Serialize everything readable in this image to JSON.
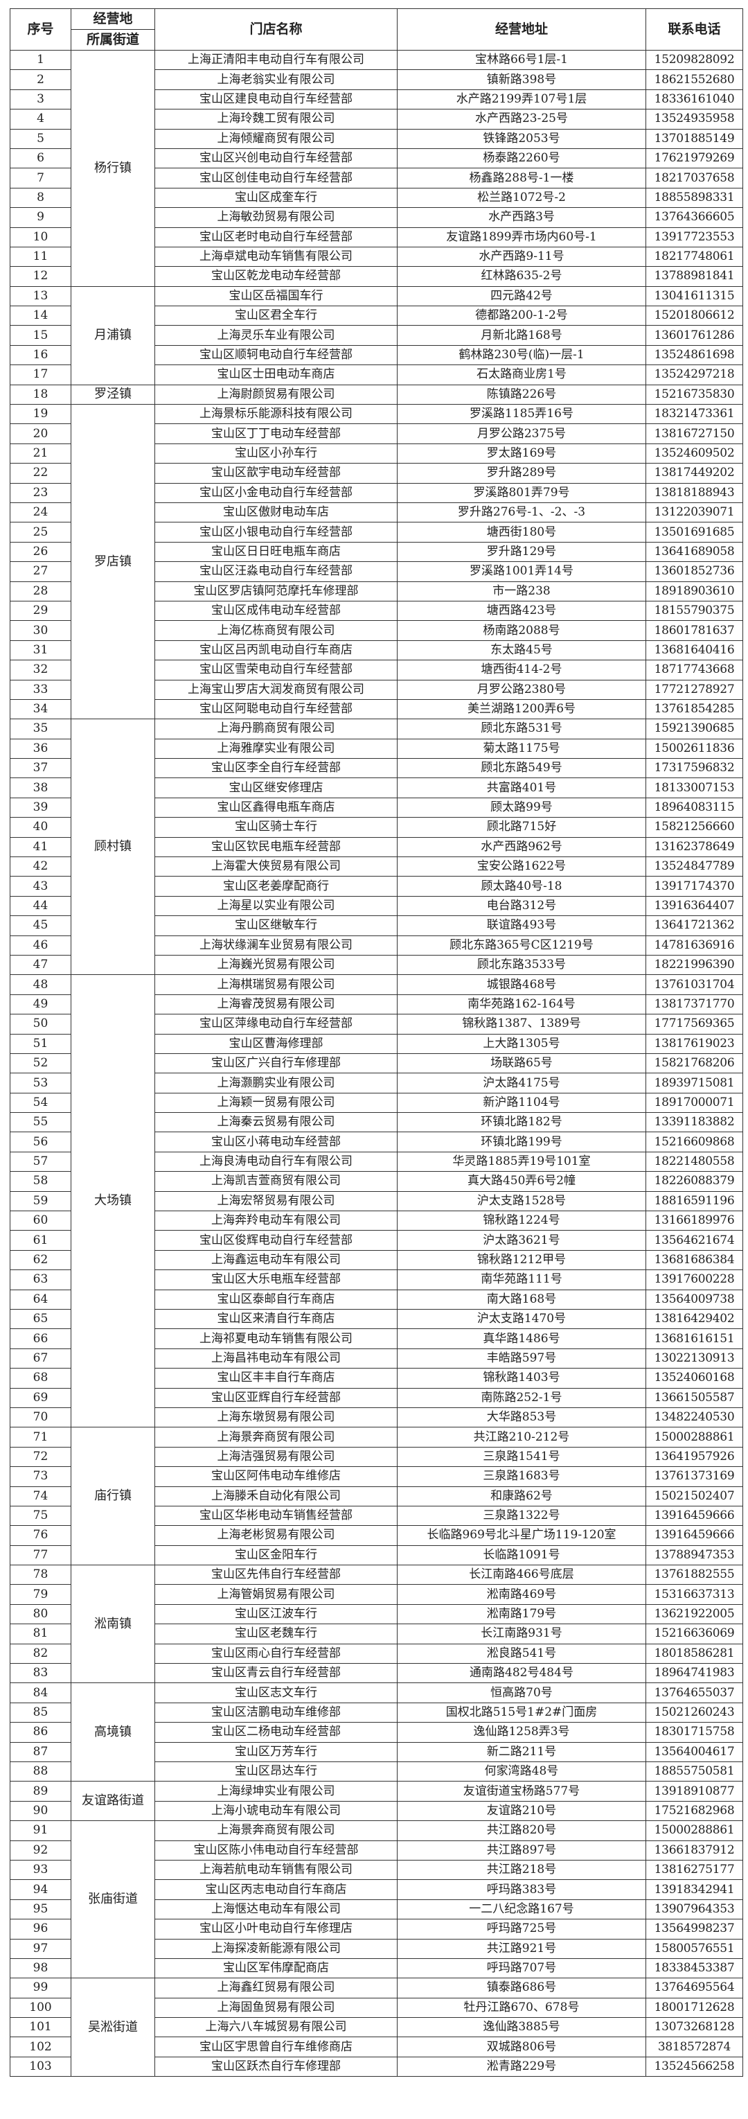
{
  "header": {
    "no": "序号",
    "street_top": "经营地",
    "street_bottom": "所属街道",
    "name": "门店名称",
    "address": "经营地址",
    "phone": "联系电话"
  },
  "groups": [
    {
      "street": "杨行镇",
      "stores": [
        [
          "1",
          "上海正清阳丰电动自行车有限公司",
          "宝林路66号1层-1",
          "15209828092"
        ],
        [
          "2",
          "上海老翁实业有限公司",
          "镇新路398号",
          "18621552680"
        ],
        [
          "3",
          "宝山区建良电动自行车经营部",
          "水产路2199弄107号1层",
          "18336161040"
        ],
        [
          "4",
          "上海玲魏工贸有限公司",
          "水产西路23-25号",
          "13524935958"
        ],
        [
          "5",
          "上海倾耀商贸有限公司",
          "铁锋路2053号",
          "13701885149"
        ],
        [
          "6",
          "宝山区兴创电动自行车经营部",
          "杨泰路2260号",
          "17621979269"
        ],
        [
          "7",
          "宝山区创佳电动自行车经营部",
          "杨鑫路288号-1一楼",
          "18217037658"
        ],
        [
          "8",
          "宝山区成奎车行",
          "松兰路1072号-2",
          "18855898331"
        ],
        [
          "9",
          "上海敏劲贸易有限公司",
          "水产西路3号",
          "13764366605"
        ],
        [
          "10",
          "宝山区老时电动自行车经营部",
          "友谊路1899弄市场内60号-1",
          "13917723553"
        ],
        [
          "11",
          "上海卓斌电动车销售有限公司",
          "水产西路9-11号",
          "18217748061"
        ],
        [
          "12",
          "宝山区乾龙电动车经营部",
          "红林路635-2号",
          "13788981841"
        ]
      ]
    },
    {
      "street": "月浦镇",
      "stores": [
        [
          "13",
          "宝山区岳福国车行",
          "四元路42号",
          "13041611315"
        ],
        [
          "14",
          "宝山区君全车行",
          "德都路200-1-2号",
          "15201806612"
        ],
        [
          "15",
          "上海灵乐车业有限公司",
          "月新北路168号",
          "13601761286"
        ],
        [
          "16",
          "宝山区顺轲电动自行车经营部",
          "鹤林路230号(临)一层-1",
          "13524861698"
        ],
        [
          "17",
          "宝山区士田电动车商店",
          "石太路商业房1号",
          "13524297218"
        ]
      ]
    },
    {
      "street": "罗泾镇",
      "stores": [
        [
          "18",
          "上海尉颜贸易有限公司",
          "陈镇路226号",
          "15216735830"
        ]
      ]
    },
    {
      "street": "罗店镇",
      "stores": [
        [
          "19",
          "上海景标乐能源科技有限公司",
          "罗溪路1185弄16号",
          "18321473361"
        ],
        [
          "20",
          "宝山区丁丁电动车经营部",
          "月罗公路2375号",
          "13816727150"
        ],
        [
          "21",
          "宝山区小孙车行",
          "罗太路169号",
          "13524609502"
        ],
        [
          "22",
          "宝山区歆宇电动车经营部",
          "罗升路289号",
          "13817449202"
        ],
        [
          "23",
          "宝山区小金电动自行车经营部",
          "罗溪路801弄79号",
          "13818188943"
        ],
        [
          "24",
          "宝山区傲财电动车店",
          "罗升路276号-1、-2、-3",
          "13122039071"
        ],
        [
          "25",
          "宝山区小银电动自行车经营部",
          "塘西街180号",
          "13501691685"
        ],
        [
          "26",
          "宝山区日日旺电瓶车商店",
          "罗升路129号",
          "13641689058"
        ],
        [
          "27",
          "宝山区汪淼电动自行车经营部",
          "罗溪路1001弄14号",
          "13601852736"
        ],
        [
          "28",
          "宝山区罗店镇阿范摩托车修理部",
          "市一路238",
          "18918903610"
        ],
        [
          "29",
          "宝山区成伟电动车经营部",
          "塘西路423号",
          "18155790375"
        ],
        [
          "30",
          "上海亿栋商贸有限公司",
          "杨南路2088号",
          "18601781637"
        ],
        [
          "31",
          "宝山区吕丙凯电动自行车商店",
          "东太路45号",
          "13681640416"
        ],
        [
          "32",
          "宝山区雪荣电动自行车经营部",
          "塘西街414-2号",
          "18717743668"
        ],
        [
          "33",
          "上海宝山罗店大润发商贸有限公司",
          "月罗公路2380号",
          "17721278927"
        ],
        [
          "34",
          "宝山区阿聪电动自行车经营部",
          "美兰湖路1200弄6号",
          "13761854285"
        ]
      ]
    },
    {
      "street": "顾村镇",
      "stores": [
        [
          "35",
          "上海丹鹏商贸有限公司",
          "顾北东路531号",
          "15921390685"
        ],
        [
          "36",
          "上海雅摩实业有限公司",
          "菊太路1175号",
          "15002611836"
        ],
        [
          "37",
          "宝山区李全自行车经营部",
          "顾北东路549号",
          "17317596832"
        ],
        [
          "38",
          "宝山区继安修理店",
          "共富路401号",
          "18133007153"
        ],
        [
          "39",
          "宝山区鑫得电瓶车商店",
          "顾太路99号",
          "18964083115"
        ],
        [
          "40",
          "宝山区骑士车行",
          "顾北路715好",
          "15821256660"
        ],
        [
          "41",
          "宝山区钦民电瓶车经营部",
          "水产西路962号",
          "13162378649"
        ],
        [
          "42",
          "上海霍大侠贸易有限公司",
          "宝安公路1622号",
          "13524847789"
        ],
        [
          "43",
          "宝山区老姜摩配商行",
          "顾太路40号-18",
          "13917174370"
        ],
        [
          "44",
          "上海星以实业有限公司",
          "电台路312号",
          "13916364407"
        ],
        [
          "45",
          "宝山区继敏车行",
          "联谊路493号",
          "13641721362"
        ],
        [
          "46",
          "上海状缘澜车业贸易有限公司",
          "顾北东路365号C区1219号",
          "14781636916"
        ],
        [
          "47",
          "上海巍光贸易有限公司",
          "顾北东路3533号",
          "18221996390"
        ]
      ]
    },
    {
      "street": "大场镇",
      "stores": [
        [
          "48",
          "上海棋瑞贸易有限公司",
          "城银路468号",
          "13761031704"
        ],
        [
          "49",
          "上海睿茂贸易有限公司",
          "南华苑路162-164号",
          "13817371770"
        ],
        [
          "50",
          "宝山区萍缘电动自行车经营部",
          "锦秋路1387、1389号",
          "17717569365"
        ],
        [
          "51",
          "宝山区曹海修理部",
          "上大路1305号",
          "13817619023"
        ],
        [
          "52",
          "宝山区广兴自行车修理部",
          "场联路65号",
          "15821768206"
        ],
        [
          "53",
          "上海灏鹏实业有限公司",
          "沪太路4175号",
          "18939715081"
        ],
        [
          "54",
          "上海颖一贸易有限公司",
          "新沪路1104号",
          "18917000071"
        ],
        [
          "55",
          "上海秦云贸易有限公司",
          "环镇北路182号",
          "13391183882"
        ],
        [
          "56",
          "宝山区小蒋电动车经营部",
          "环镇北路199号",
          "15216609868"
        ],
        [
          "57",
          "上海良涛电动自行车有限公司",
          "华灵路1885弄19号101室",
          "18221480558"
        ],
        [
          "58",
          "上海凯吉萱商贸有限公司",
          "真大路450弄6号2幢",
          "18226088379"
        ],
        [
          "59",
          "上海宏帑贸易有限公司",
          "沪太支路1528号",
          "18816591196"
        ],
        [
          "60",
          "上海奔羚电动车有限公司",
          "锦秋路1224号",
          "13166189976"
        ],
        [
          "61",
          "宝山区俊辉电动自行车经营部",
          "沪太路3621号",
          "13564621674"
        ],
        [
          "62",
          "上海鑫运电动车有限公司",
          "锦秋路1212甲号",
          "13681686384"
        ],
        [
          "63",
          "宝山区大乐电瓶车经营部",
          "南华苑路111号",
          "13917600228"
        ],
        [
          "64",
          "宝山区泰邮自行车商店",
          "南大路168号",
          "13564009738"
        ],
        [
          "65",
          "宝山区来清自行车商店",
          "沪太支路1470号",
          "13816429402"
        ],
        [
          "66",
          "上海祁夏电动车销售有限公司",
          "真华路1486号",
          "13681616151"
        ],
        [
          "67",
          "上海昌祎电动车有限公司",
          "丰皓路597号",
          "13022130913"
        ],
        [
          "68",
          "宝山区丰丰自行车商店",
          "锦秋路1403号",
          "13524060168"
        ],
        [
          "69",
          "宝山区亚辉自行车经营部",
          "南陈路252-1号",
          "13661505587"
        ],
        [
          "70",
          "上海东墩贸易有限公司",
          "大华路853号",
          "13482240530"
        ]
      ]
    },
    {
      "street": "庙行镇",
      "stores": [
        [
          "71",
          "上海景奔商贸有限公司",
          "共江路210-212号",
          "15000288861"
        ],
        [
          "72",
          "上海洁强贸易有限公司",
          "三泉路1541号",
          "13641957926"
        ],
        [
          "73",
          "宝山区阿伟电动车维修店",
          "三泉路1683号",
          "13761373169"
        ],
        [
          "74",
          "上海滕禾自动化有限公司",
          "和康路62号",
          "15021502407"
        ],
        [
          "75",
          "宝山区华彬电动车销售经营部",
          "三泉路1322号",
          "13916459666"
        ],
        [
          "76",
          "上海老彬贸易有限公司",
          "长临路969号北斗星广场119-120室",
          "13916459666"
        ],
        [
          "77",
          "宝山区金阳车行",
          "长临路1091号",
          "13788947353"
        ]
      ]
    },
    {
      "street": "淞南镇",
      "stores": [
        [
          "78",
          "宝山区先伟自行车经营部",
          "长江南路466号底层",
          "13761882555"
        ],
        [
          "79",
          "上海管娟贸易有限公司",
          "淞南路469号",
          "15316637313"
        ],
        [
          "80",
          "宝山区江波车行",
          "淞南路179号",
          "13621922005"
        ],
        [
          "81",
          "宝山区老魏车行",
          "长江南路931号",
          "15216636069"
        ],
        [
          "82",
          "宝山区雨心自行车经营部",
          "淞良路541号",
          "18018586281"
        ],
        [
          "83",
          "宝山区青云自行车经营部",
          "通南路482号484号",
          "18964741983"
        ]
      ]
    },
    {
      "street": "高境镇",
      "stores": [
        [
          "84",
          "宝山区志文车行",
          "恒高路70号",
          "13764655037"
        ],
        [
          "85",
          "宝山区洁鹏电动车维修部",
          "国权北路515号1#2#门面房",
          "15021260243"
        ],
        [
          "86",
          "宝山区二杨电动车经营部",
          "逸仙路1258弄3号",
          "18301715758"
        ],
        [
          "87",
          "宝山区万芳车行",
          "新二路211号",
          "13564004617"
        ],
        [
          "88",
          "宝山区昂达车行",
          "何家湾路48号",
          "18855750581"
        ]
      ]
    },
    {
      "street": "友谊路街道",
      "stores": [
        [
          "89",
          "上海绿坤实业有限公司",
          "友谊街道宝杨路577号",
          "13918910877"
        ],
        [
          "90",
          "上海小琥电动车有限公司",
          "友谊路210号",
          "17521682968"
        ]
      ]
    },
    {
      "street": "张庙街道",
      "stores": [
        [
          "91",
          "上海景奔商贸有限公司",
          "共江路820号",
          "15000288861"
        ],
        [
          "92",
          "宝山区陈小伟电动自行车经营部",
          "共江路897号",
          "13661837912"
        ],
        [
          "93",
          "上海若航电动车销售有限公司",
          "共江路218号",
          "13816275177"
        ],
        [
          "94",
          "宝山区丙志电动自行车商店",
          "呼玛路383号",
          "13918342941"
        ],
        [
          "95",
          "上海惬达电动车有限公司",
          "一二八纪念路167号",
          "13907964353"
        ],
        [
          "96",
          "宝山区小叶电动自行车修理店",
          "呼玛路725号",
          "13564998237"
        ],
        [
          "97",
          "上海探凌新能源有限公司",
          "共江路921号",
          "15800576551"
        ],
        [
          "98",
          "宝山区军伟摩配商店",
          "呼玛路707号",
          "18338453387"
        ]
      ]
    },
    {
      "street": "吴淞街道",
      "stores": [
        [
          "99",
          "上海鑫红贸易有限公司",
          "镇泰路686号",
          "13764695564"
        ],
        [
          "100",
          "上海固鱼贸易有限公司",
          "牡丹江路670、678号",
          "18001712628"
        ],
        [
          "101",
          "上海六八车城贸易有限公司",
          "逸仙路3885号",
          "13073268128"
        ],
        [
          "102",
          "宝山区宇思曾自行车维修商店",
          "双城路806号",
          "3818572874"
        ],
        [
          "103",
          "宝山区跃杰自行车修理部",
          "淞青路229号",
          "13524566258"
        ]
      ]
    }
  ]
}
